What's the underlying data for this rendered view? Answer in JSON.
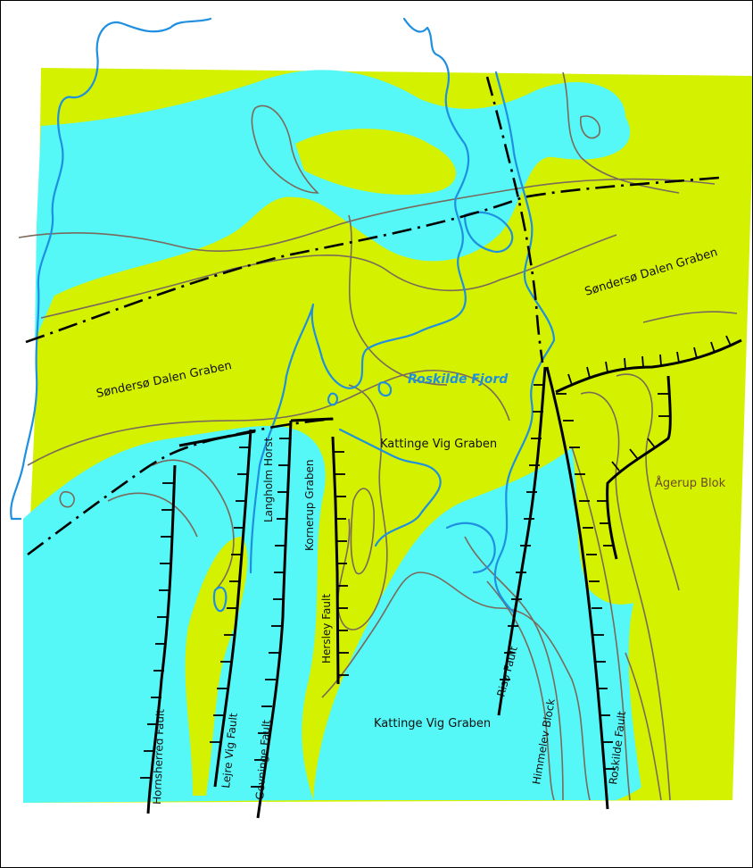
{
  "colors": {
    "high_area": "#d4f200",
    "low_area": "#55f7f7",
    "coastline": "#1f8fe0",
    "contours": "#7a6a5c",
    "faults": "#000000"
  },
  "labels": {
    "sonderso_dalen_west": "Søndersø Dalen Graben",
    "sonderso_dalen_east": "Søndersø Dalen Graben",
    "roskilde_fjord": "Roskilde Fjord",
    "kattinge_vig_north": "Kattinge Vig Graben",
    "kattinge_vig_south": "Kattinge Vig Graben",
    "agerup_blok": "Ågerup Blok",
    "langholm_horst": "Langholm Horst",
    "kornerup_graben": "Kornerup Graben",
    "hersley_fault": "Hersley Fault",
    "riso_fault": "Risø Fault",
    "himmelev_block": "Himmelev Block",
    "roskilde_fault": "Roskilde Fault",
    "hornsherred_fault": "Hornsherred Fault",
    "lejre_vig_fault": "Lejre Vig Fault",
    "gevninge_fault": "Gevninge Fault"
  }
}
